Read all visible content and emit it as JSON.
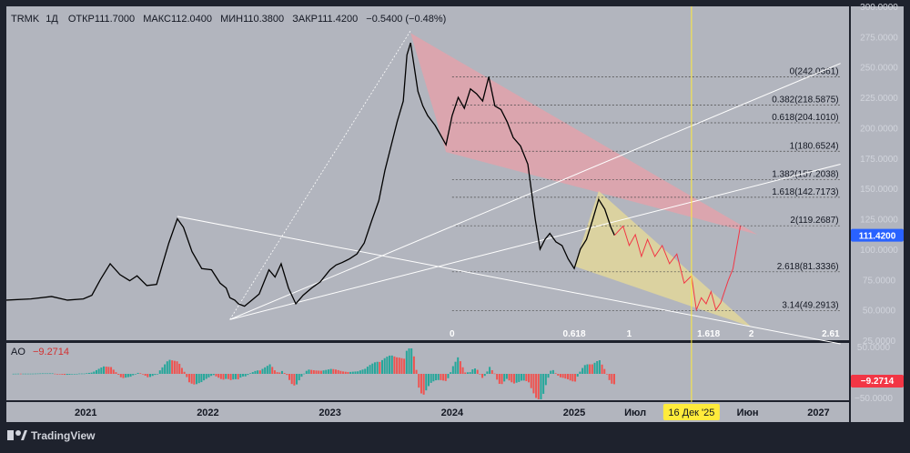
{
  "header": {
    "symbol": "TRMK",
    "interval": "1Д",
    "open": "ОТКР111.7000",
    "high": "МАКС112.0400",
    "low": "МИН110.3800",
    "close": "ЗАКР111.4200",
    "change": "−0.5400 (−0.48%)"
  },
  "colors": {
    "chart_bg": "#b2b5be",
    "frame_bg": "#1e222d",
    "candle": "#000000",
    "projection": "#f23645",
    "red_zone": "#e8a0a8",
    "yellow_zone": "#e8dc96",
    "ao_up": "#26a69a",
    "ao_down": "#ef5350",
    "price_tag": "#2962ff",
    "date_marker": "#ffeb3b"
  },
  "chart_data": {
    "type": "line",
    "title": "TRMK 1Д",
    "ylim": [
      25,
      300
    ],
    "xlim": [
      2020.35,
      2027.25
    ],
    "y_ticks": [
      "300.0000",
      "275.0000",
      "250.0000",
      "225.0000",
      "200.0000",
      "175.0000",
      "150.0000",
      "125.0000",
      "100.0000",
      "75.0000",
      "50.0000",
      "25.0000"
    ],
    "last_price": "111.4200",
    "x_ticks": [
      {
        "label": "2021",
        "x": 2021.0
      },
      {
        "label": "2022",
        "x": 2022.0
      },
      {
        "label": "2023",
        "x": 2023.0
      },
      {
        "label": "2024",
        "x": 2024.0
      },
      {
        "label": "2025",
        "x": 2025.0
      },
      {
        "label": "Июл",
        "x": 2025.5
      },
      {
        "label": "Июн",
        "x": 2026.42
      },
      {
        "label": "2027",
        "x": 2027.0
      }
    ],
    "date_marker": {
      "label": "16 Дек '25",
      "x": 2025.96
    },
    "series": [
      {
        "name": "price",
        "points": [
          [
            2020.35,
            58
          ],
          [
            2020.55,
            59
          ],
          [
            2020.72,
            61
          ],
          [
            2020.85,
            58
          ],
          [
            2020.98,
            59
          ],
          [
            2021.05,
            62
          ],
          [
            2021.12,
            75
          ],
          [
            2021.2,
            88
          ],
          [
            2021.28,
            79
          ],
          [
            2021.36,
            74
          ],
          [
            2021.42,
            78
          ],
          [
            2021.5,
            70
          ],
          [
            2021.58,
            71
          ],
          [
            2021.63,
            88
          ],
          [
            2021.68,
            105
          ],
          [
            2021.75,
            125
          ],
          [
            2021.8,
            118
          ],
          [
            2021.87,
            98
          ],
          [
            2021.95,
            84
          ],
          [
            2022.03,
            83
          ],
          [
            2022.1,
            72
          ],
          [
            2022.15,
            68
          ],
          [
            2022.18,
            60
          ],
          [
            2022.22,
            58
          ],
          [
            2022.25,
            55
          ],
          [
            2022.3,
            53
          ],
          [
            2022.36,
            58
          ],
          [
            2022.42,
            63
          ],
          [
            2022.5,
            83
          ],
          [
            2022.55,
            77
          ],
          [
            2022.6,
            88
          ],
          [
            2022.66,
            68
          ],
          [
            2022.72,
            55
          ],
          [
            2022.78,
            62
          ],
          [
            2022.85,
            68
          ],
          [
            2022.92,
            73
          ],
          [
            2023.0,
            83
          ],
          [
            2023.05,
            87
          ],
          [
            2023.1,
            89
          ],
          [
            2023.16,
            92
          ],
          [
            2023.22,
            96
          ],
          [
            2023.28,
            105
          ],
          [
            2023.34,
            123
          ],
          [
            2023.4,
            140
          ],
          [
            2023.45,
            165
          ],
          [
            2023.5,
            185
          ],
          [
            2023.55,
            205
          ],
          [
            2023.6,
            222
          ],
          [
            2023.63,
            260
          ],
          [
            2023.66,
            270
          ],
          [
            2023.69,
            250
          ],
          [
            2023.72,
            230
          ],
          [
            2023.76,
            218
          ],
          [
            2023.8,
            210
          ],
          [
            2023.86,
            202
          ],
          [
            2023.9,
            195
          ],
          [
            2023.95,
            186
          ],
          [
            2024.0,
            210
          ],
          [
            2024.05,
            225
          ],
          [
            2024.1,
            216
          ],
          [
            2024.15,
            232
          ],
          [
            2024.2,
            228
          ],
          [
            2024.25,
            222
          ],
          [
            2024.3,
            242
          ],
          [
            2024.35,
            218
          ],
          [
            2024.4,
            215
          ],
          [
            2024.45,
            205
          ],
          [
            2024.5,
            192
          ],
          [
            2024.56,
            185
          ],
          [
            2024.62,
            170
          ],
          [
            2024.68,
            125
          ],
          [
            2024.72,
            100
          ],
          [
            2024.76,
            108
          ],
          [
            2024.8,
            113
          ],
          [
            2024.85,
            106
          ],
          [
            2024.9,
            103
          ],
          [
            2024.95,
            92
          ],
          [
            2025.0,
            84
          ],
          [
            2025.05,
            100
          ],
          [
            2025.1,
            108
          ],
          [
            2025.15,
            124
          ],
          [
            2025.2,
            141
          ],
          [
            2025.25,
            133
          ],
          [
            2025.3,
            118
          ],
          [
            2025.33,
            111.42
          ]
        ]
      },
      {
        "name": "projection",
        "points": [
          [
            2025.33,
            111.42
          ],
          [
            2025.4,
            119
          ],
          [
            2025.45,
            103
          ],
          [
            2025.5,
            112
          ],
          [
            2025.55,
            94
          ],
          [
            2025.6,
            108
          ],
          [
            2025.66,
            94
          ],
          [
            2025.72,
            103
          ],
          [
            2025.78,
            88
          ],
          [
            2025.84,
            96
          ],
          [
            2025.9,
            72
          ],
          [
            2025.96,
            78
          ],
          [
            2026.0,
            50
          ],
          [
            2026.04,
            60
          ],
          [
            2026.08,
            55
          ],
          [
            2026.12,
            65
          ],
          [
            2026.16,
            50
          ],
          [
            2026.2,
            56
          ],
          [
            2026.26,
            74
          ],
          [
            2026.3,
            84
          ],
          [
            2026.36,
            119
          ]
        ]
      }
    ],
    "zones": [
      {
        "name": "red-channel",
        "points": [
          [
            2023.66,
            278
          ],
          [
            2026.5,
            112
          ],
          [
            2023.95,
            180
          ]
        ]
      },
      {
        "name": "yellow-channel",
        "points": [
          [
            2025.2,
            148
          ],
          [
            2026.45,
            36
          ],
          [
            2025.0,
            86
          ]
        ]
      }
    ],
    "trendlines": [
      [
        [
          2022.18,
          42
        ],
        [
          2027.18,
          253
        ]
      ],
      [
        [
          2022.18,
          42
        ],
        [
          2027.18,
          170
        ]
      ],
      [
        [
          2021.75,
          127
        ],
        [
          2027.18,
          22
        ]
      ],
      [
        [
          2022.18,
          42
        ],
        [
          2023.66,
          280
        ]
      ]
    ],
    "fib_levels": [
      {
        "label": "0(242.0361)",
        "value": 242.0361
      },
      {
        "label": "0.382(218.5875)",
        "value": 218.5875
      },
      {
        "label": "0.618(204.1010)",
        "value": 204.101
      },
      {
        "label": "1(180.6524)",
        "value": 180.6524
      },
      {
        "label": "1.382(157.2038)",
        "value": 157.2038
      },
      {
        "label": "1.618(142.7173)",
        "value": 142.7173
      },
      {
        "label": "2(119.2687)",
        "value": 119.2687
      },
      {
        "label": "2.618(81.3336)",
        "value": 81.3336
      },
      {
        "label": "3.14(49.2913)",
        "value": 49.2913
      }
    ],
    "fib_time": [
      {
        "label": "0",
        "x": 2024.0
      },
      {
        "label": "0.618",
        "x": 2025.0
      },
      {
        "label": "1",
        "x": 2025.45
      },
      {
        "label": "1.618",
        "x": 2026.1
      },
      {
        "label": "2",
        "x": 2026.45
      },
      {
        "label": "2.61",
        "x": 2027.1
      }
    ],
    "ao": {
      "name": "AO",
      "value": "−9.2714",
      "ylim": [
        -50,
        50
      ],
      "ticks": [
        "50.0000",
        "0.0000",
        "−50.0000"
      ],
      "value_tag": "−9.2714"
    }
  },
  "watermark": "TradingView"
}
